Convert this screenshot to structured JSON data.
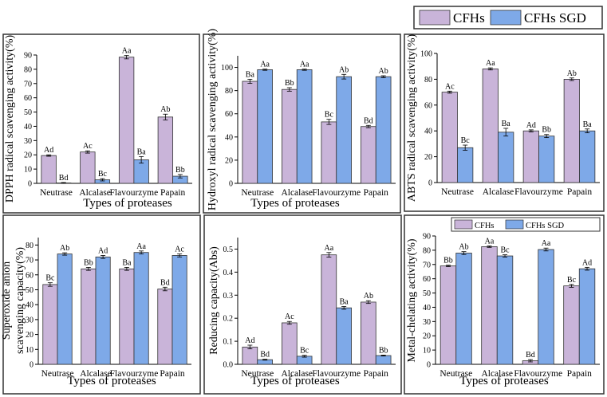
{
  "colors": {
    "CFHs": "#C9B4D9",
    "CFHs SGD": "#7EA9E8",
    "axis": "#000000",
    "frame": "#333333"
  },
  "top_legend": {
    "labels": [
      "CFHs",
      "CFHs SGD"
    ]
  },
  "chart_data": [
    {
      "type": "bar",
      "xlabel": "Types of proteases",
      "ylabel": "DPPH radical scavenging activity(%)",
      "categories": [
        "Neutrase",
        "Alcalase",
        "Flavourzyme",
        "Papain"
      ],
      "ylim": [
        0,
        90
      ],
      "yticks": [
        0,
        10,
        20,
        30,
        40,
        50,
        60,
        70,
        80,
        90
      ],
      "series": [
        {
          "name": "CFHs",
          "values": [
            19.5,
            22,
            88.5,
            46.5
          ],
          "errors": [
            0.5,
            0.8,
            1.2,
            2
          ],
          "labels": [
            "Ad",
            "Ac",
            "Aa",
            "Ab"
          ]
        },
        {
          "name": "CFHs SGD",
          "values": [
            0.3,
            2.5,
            16.5,
            5
          ],
          "errors": [
            0.3,
            0.8,
            2.3,
            1.2
          ],
          "labels": [
            "Bd",
            "Bc",
            "Ba",
            "Bb"
          ]
        }
      ]
    },
    {
      "type": "bar",
      "xlabel": "Types of proteases",
      "ylabel": "Hydroxyl radical scavenging activity(%)",
      "categories": [
        "Neutrase",
        "Alcalase",
        "Flavourzyme",
        "Papain"
      ],
      "ylim": [
        0,
        110
      ],
      "yticks": [
        0,
        20,
        40,
        60,
        80,
        100
      ],
      "series": [
        {
          "name": "CFHs",
          "values": [
            88,
            81,
            53,
            49
          ],
          "errors": [
            1.8,
            1.5,
            2.2,
            1
          ],
          "labels": [
            "Ba",
            "Bb",
            "Bc",
            "Bd"
          ]
        },
        {
          "name": "CFHs SGD",
          "values": [
            98,
            98,
            92,
            92
          ],
          "errors": [
            0.5,
            0.5,
            2,
            0.8
          ],
          "labels": [
            "Aa",
            "Aa",
            "Ab",
            "Ab"
          ]
        }
      ]
    },
    {
      "type": "bar",
      "xlabel": "",
      "ylabel": "ABTS radical scavenging activity(%)",
      "categories": [
        "Neutrase",
        "Alcalase",
        "Flavourzyme",
        "Papain"
      ],
      "ylim": [
        0,
        100
      ],
      "yticks": [
        0,
        20,
        40,
        60,
        80,
        100
      ],
      "series": [
        {
          "name": "CFHs",
          "values": [
            70,
            88,
            40,
            80
          ],
          "errors": [
            0.8,
            0.8,
            0.8,
            1
          ],
          "labels": [
            "Ac",
            "Aa",
            "Ad",
            "Ab"
          ]
        },
        {
          "name": "CFHs SGD",
          "values": [
            27,
            39,
            36,
            40
          ],
          "errors": [
            2,
            3,
            1.2,
            1.5
          ],
          "labels": [
            "Bc",
            "Ba",
            "Bb",
            "Ba"
          ]
        }
      ]
    },
    {
      "type": "bar",
      "xlabel": "Types of proteases",
      "ylabel": "Superoxide anion scavenging capacity(%)",
      "ylabel_lines": [
        "Superoxide anion",
        "scavenging capacity(%)"
      ],
      "categories": [
        "Neutrase",
        "Alcalase",
        "Flavourzyme",
        "Papain"
      ],
      "ylim": [
        0,
        85
      ],
      "yticks": [
        0,
        10,
        20,
        30,
        40,
        50,
        60,
        70,
        80
      ],
      "series": [
        {
          "name": "CFHs",
          "values": [
            53.5,
            64,
            64,
            50.5
          ],
          "errors": [
            1.2,
            1,
            1,
            1.2
          ],
          "labels": [
            "Bc",
            "Bb",
            "Ba",
            "Bd"
          ]
        },
        {
          "name": "CFHs SGD",
          "values": [
            74,
            72,
            75,
            73
          ],
          "errors": [
            0.8,
            1,
            1,
            1
          ],
          "labels": [
            "Ab",
            "Ad",
            "Aa",
            "Ac"
          ]
        }
      ]
    },
    {
      "type": "bar",
      "xlabel": "Types of proteases",
      "ylabel": "Reducing capacity(Abs)",
      "categories": [
        "Neutrase",
        "Alcalase",
        "Flavourzyme",
        "Papain"
      ],
      "ylim": [
        0,
        0.55
      ],
      "yticks": [
        0.0,
        0.1,
        0.2,
        0.3,
        0.4,
        0.5
      ],
      "series": [
        {
          "name": "CFHs",
          "values": [
            0.075,
            0.18,
            0.475,
            0.27
          ],
          "errors": [
            0.008,
            0.006,
            0.01,
            0.006
          ],
          "labels": [
            "Ad",
            "Ac",
            "Aa",
            "Ab"
          ]
        },
        {
          "name": "CFHs SGD",
          "values": [
            0.02,
            0.035,
            0.245,
            0.038
          ],
          "errors": [
            0.002,
            0.004,
            0.006,
            0.002
          ],
          "labels": [
            "Bd",
            "Bc",
            "Ba",
            "Bb"
          ]
        }
      ]
    },
    {
      "type": "bar",
      "xlabel": "Types of proteases",
      "ylabel": "Metal-chelating activity(%)",
      "categories": [
        "Neutrase",
        "Alcalase",
        "Flavourzyme",
        "Papain"
      ],
      "ylim": [
        0,
        90
      ],
      "yticks": [
        0,
        10,
        20,
        30,
        40,
        50,
        60,
        70,
        80,
        90
      ],
      "legend": {
        "position": "top-right",
        "labels": [
          "CFHs",
          "CFHs SGD"
        ]
      },
      "series": [
        {
          "name": "CFHs",
          "values": [
            69,
            82.5,
            2.5,
            55
          ],
          "errors": [
            0.5,
            0.5,
            0.8,
            1
          ],
          "labels": [
            "Bb",
            "Aa",
            "Bd",
            "Bc"
          ]
        },
        {
          "name": "CFHs SGD",
          "values": [
            78,
            76,
            80.5,
            67
          ],
          "errors": [
            1,
            0.8,
            1,
            1
          ],
          "labels": [
            "Ab",
            "Bc",
            "Aa",
            "Ad"
          ]
        }
      ]
    }
  ]
}
